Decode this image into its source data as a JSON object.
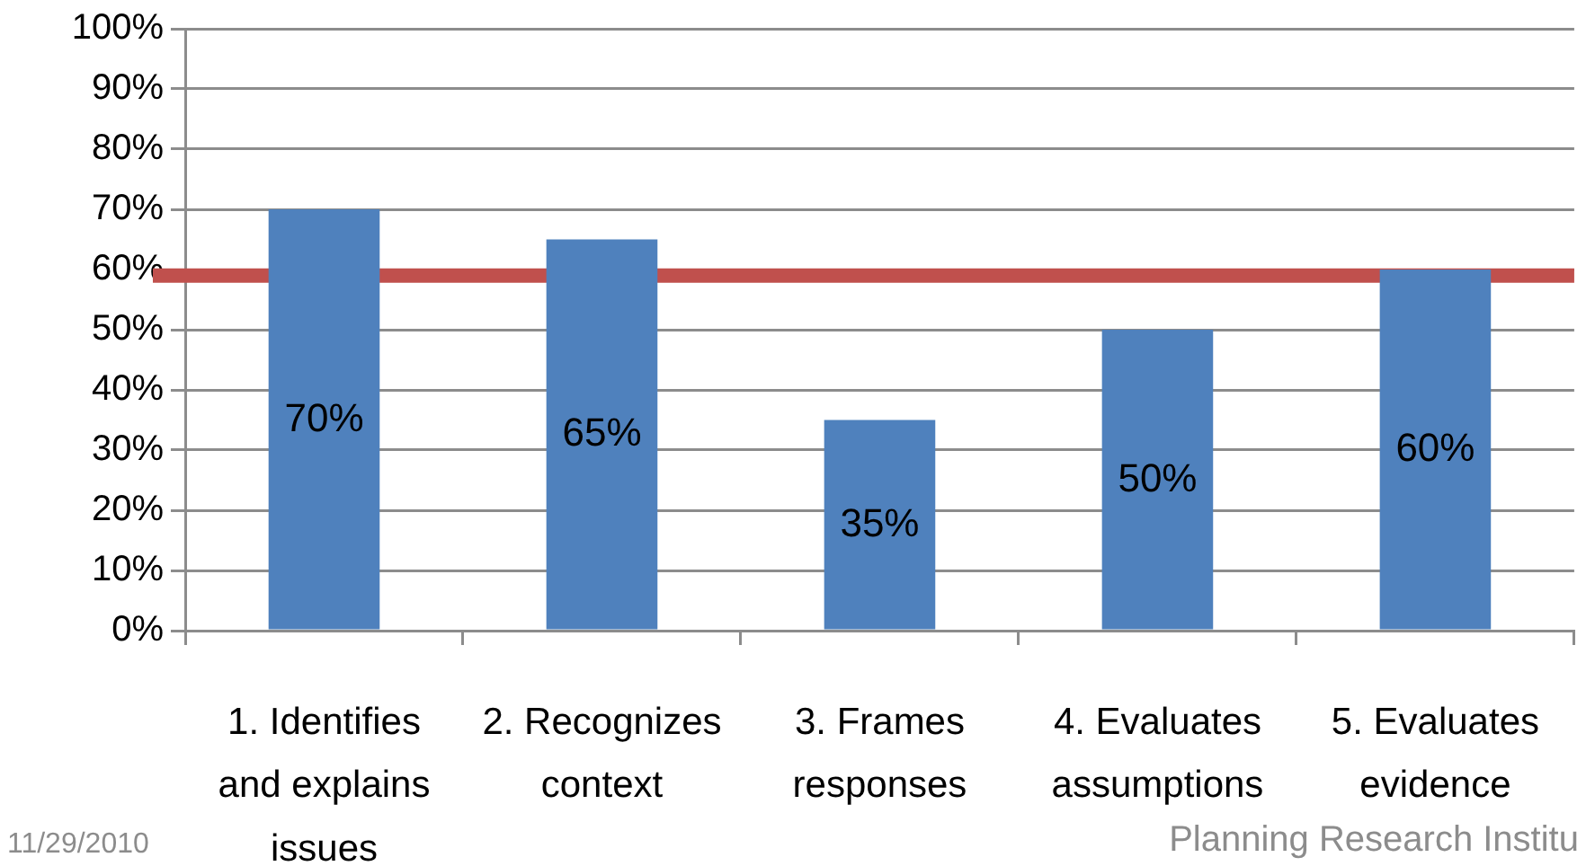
{
  "chart_data": {
    "type": "bar",
    "categories": [
      "1. Identifies and explains issues",
      "2. Recognizes context",
      "3. Frames responses",
      "4. Evaluates assumptions",
      "5. Evaluates evidence"
    ],
    "series": [
      {
        "color": "#4f81bd",
        "values": [
          70,
          65,
          35,
          50,
          60
        ],
        "value_labels": [
          "70%",
          "65%",
          "35%",
          "50%",
          "60%"
        ]
      }
    ],
    "ylim": [
      0,
      100
    ],
    "yticks": [
      {
        "value": 0,
        "label": "0%"
      },
      {
        "value": 10,
        "label": "10%"
      },
      {
        "value": 20,
        "label": "20%"
      },
      {
        "value": 30,
        "label": "30%"
      },
      {
        "value": 40,
        "label": "40%"
      },
      {
        "value": 50,
        "label": "50%"
      },
      {
        "value": 60,
        "label": "60%"
      },
      {
        "value": 70,
        "label": "70%"
      },
      {
        "value": 80,
        "label": "80%"
      },
      {
        "value": 90,
        "label": "90%"
      },
      {
        "value": 100,
        "label": "100%"
      }
    ],
    "grid": "y",
    "ref_lines": [
      {
        "axis": "y",
        "value": 59,
        "color": "#c0504d"
      }
    ],
    "annotations": [
      "11/29/2010",
      "Planning Research Institu"
    ]
  }
}
